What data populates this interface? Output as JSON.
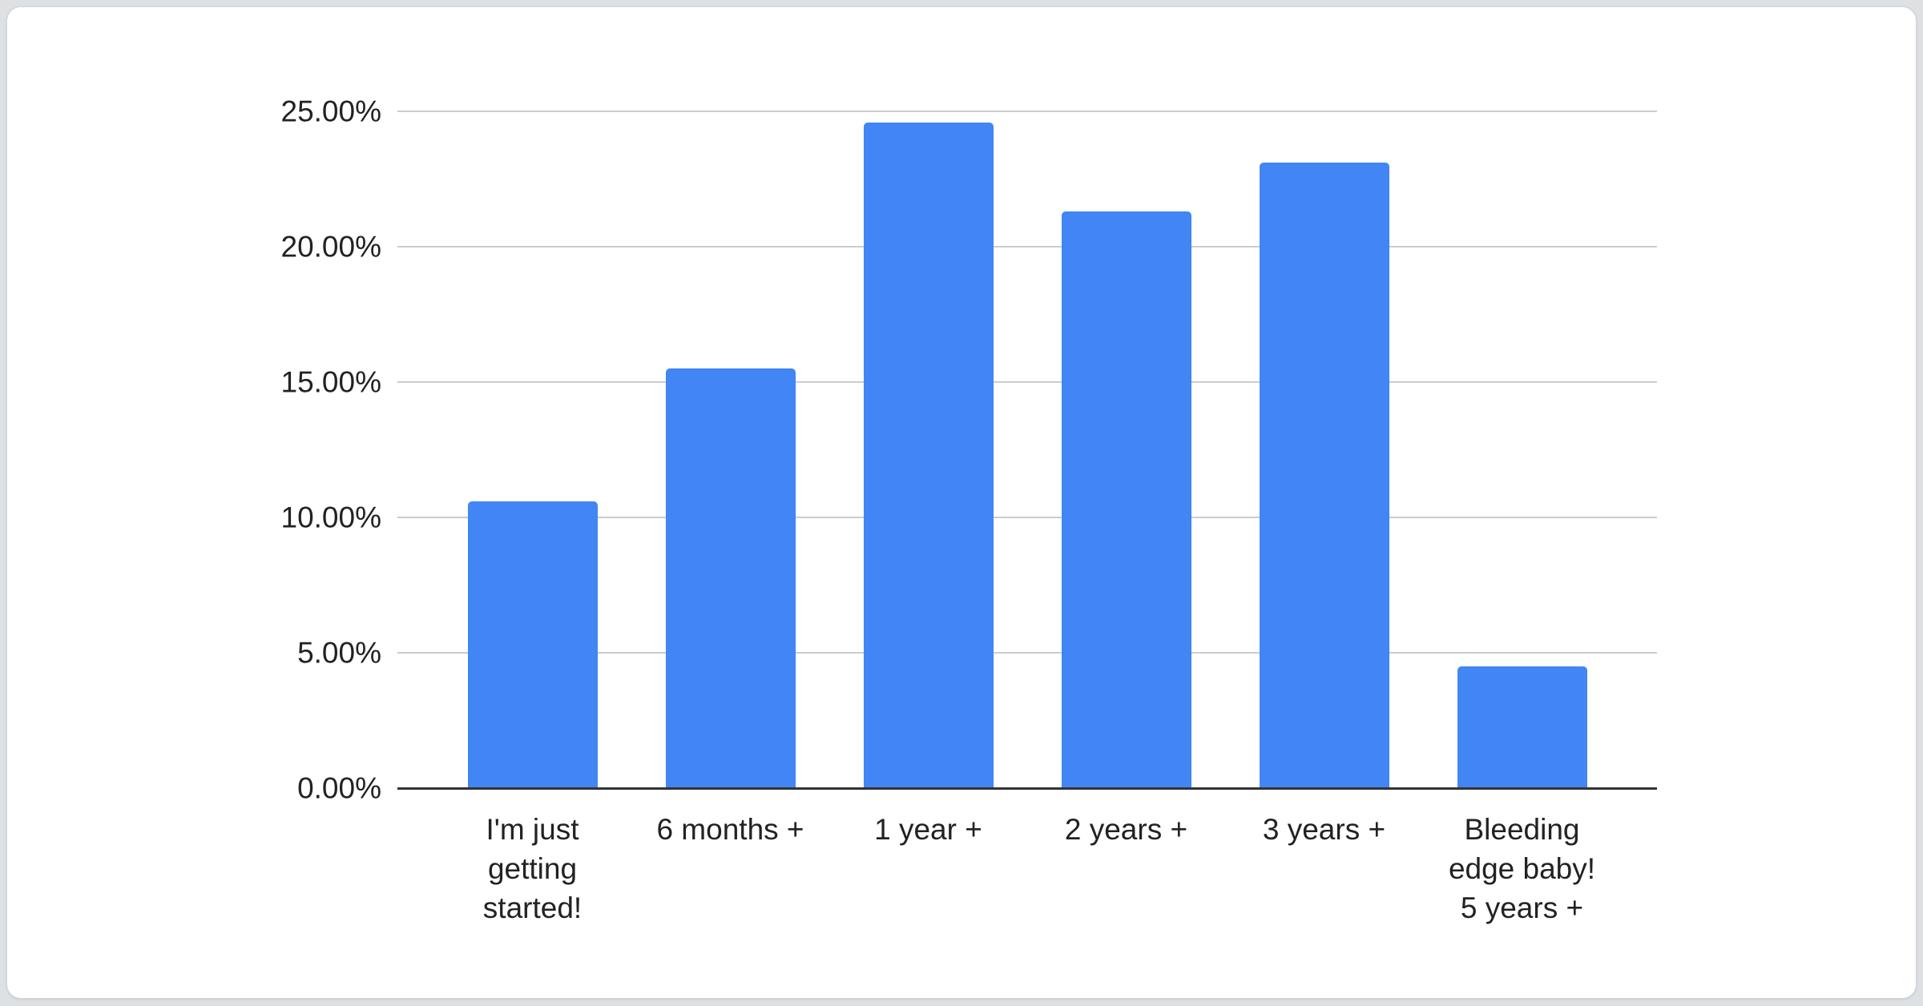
{
  "page": {
    "background_color": "#dee1e4",
    "card_background_color": "#ffffff"
  },
  "chart_data": {
    "type": "bar",
    "title": "",
    "categories": [
      "I'm just getting started!",
      "6 months +",
      "1 year +",
      "2 years +",
      "3 years +",
      "Bleeding edge baby! 5 years +"
    ],
    "category_lines": [
      [
        "I'm just",
        "getting",
        "started!"
      ],
      [
        "6 months +"
      ],
      [
        "1 year +"
      ],
      [
        "2 years +"
      ],
      [
        "3 years +"
      ],
      [
        "Bleeding",
        "edge baby!",
        "5 years +"
      ]
    ],
    "values": [
      10.6,
      15.5,
      24.6,
      21.3,
      23.1,
      4.5
    ],
    "value_unit": "%",
    "y_ticks": [
      "0.00%",
      "5.00%",
      "10.00%",
      "15.00%",
      "20.00%",
      "25.00%"
    ],
    "ylim": [
      0,
      25
    ],
    "xlabel": "",
    "ylabel": "",
    "grid": true,
    "legend_position": "none",
    "bar_color": "#4285f4",
    "gridline_color": "#cccccc",
    "axis_color": "#333333",
    "label_color": "#222222"
  }
}
